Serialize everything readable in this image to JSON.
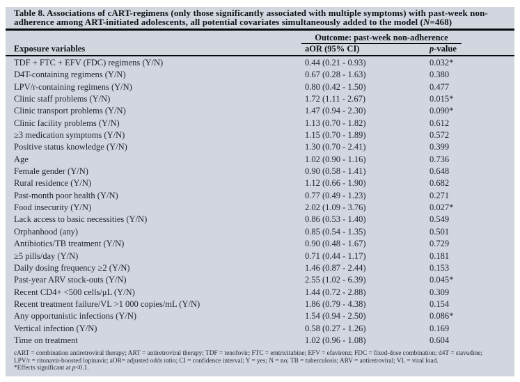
{
  "colors": {
    "table_background": "#d2d6de",
    "page_background": "#ffffff",
    "rule": "#05070c",
    "text": "#20242e"
  },
  "title": {
    "line1": "Table 8. Associations of cART-regimens (only those significantly associated with multiple symptoms) with past-week non-",
    "line2_pre": "adherence among ART-initiated adolescents, all potential covariates simultaneously added to the model (",
    "line2_n": "N",
    "line2_post": "=468)"
  },
  "header": {
    "outcome": "Outcome: past-week non-adherence",
    "exposure": "Exposure variables",
    "aor": "aOR (95% CI)",
    "p_italic": "p",
    "p_rest": "-value"
  },
  "table": {
    "rows": [
      {
        "label": "TDF + FTC + EFV (FDC) regimens (Y/N)",
        "aor": "0.44 (0.21 - 0.93)",
        "p": "0.032*"
      },
      {
        "label": "D4T-containing regimens (Y/N)",
        "aor": "0.67 (0.28 - 1.63)",
        "p": "0.380"
      },
      {
        "label": "LPV/r-containing regimens (Y/N)",
        "aor": "0.80 (0.42 - 1.50)",
        "p": "0.477"
      },
      {
        "label": "Clinic staff problems (Y/N)",
        "aor": "1.72 (1.11 - 2.67)",
        "p": "0.015*"
      },
      {
        "label": "Clinic transport problems (Y/N)",
        "aor": "1.47 (0.94 - 2.30)",
        "p": "0.090*"
      },
      {
        "label": "Clinic facility problems (Y/N)",
        "aor": "1.13 (0.70 - 1.82)",
        "p": "0.612"
      },
      {
        "label": "≥3 medication symptoms (Y/N)",
        "aor": "1.15 (0.70 - 1.89)",
        "p": "0.572"
      },
      {
        "label": "Positive status knowledge (Y/N)",
        "aor": "1.30 (0.70 - 2.41)",
        "p": "0.399"
      },
      {
        "label": "Age",
        "aor": "1.02 (0.90 - 1.16)",
        "p": "0.736"
      },
      {
        "label": "Female gender (Y/N)",
        "aor": "0.90 (0.58 - 1.41)",
        "p": "0.648"
      },
      {
        "label": "Rural residence (Y/N)",
        "aor": "1.12 (0.66 - 1.90)",
        "p": "0.682"
      },
      {
        "label": "Past-month poor health (Y/N)",
        "aor": "0.77 (0.49 - 1.23)",
        "p": "0.271"
      },
      {
        "label": "Food insecurity (Y/N)",
        "aor": "2.02 (1.09 - 3.76)",
        "p": "0.027*"
      },
      {
        "label": "Lack access to basic necessities (Y/N)",
        "aor": "0.86 (0.53 - 1.40)",
        "p": "0.549"
      },
      {
        "label": "Orphanhood (any)",
        "aor": "0.85 (0.54 - 1.35)",
        "p": "0.501"
      },
      {
        "label": "Antibiotics/TB treatment (Y/N)",
        "aor": "0.90 (0.48 - 1.67)",
        "p": "0.729"
      },
      {
        "label": "≥5 pills/day (Y/N)",
        "aor": "0.71 (0.44 - 1.17)",
        "p": "0.181"
      },
      {
        "label": "Daily dosing frequency ≥2 (Y/N)",
        "aor": "1.46 (0.87 - 2.44)",
        "p": "0.153"
      },
      {
        "label": "Past-year ARV stock-outs (Y/N)",
        "aor": "2.55 (1.02 - 6.39)",
        "p": "0.045*"
      },
      {
        "label": "Recent CD4+ <500 cells/μL (Y/N)",
        "aor": "1.44 (0.72 - 2.88)",
        "p": "0.309"
      },
      {
        "label": "Recent treatment failure/VL >1 000 copies/mL (Y/N)",
        "aor": "1.86 (0.79 - 4.38)",
        "p": "0.154"
      },
      {
        "label": "Any opportunistic infections (Y/N)",
        "aor": "1.54 (0.94 - 2.50)",
        "p": "0.086*"
      },
      {
        "label": "Vertical infection (Y/N)",
        "aor": "0.58 (0.27 - 1.26)",
        "p": "0.169"
      },
      {
        "label": "Time on treatment",
        "aor": "1.02 (0.96 - 1.08)",
        "p": "0.604"
      }
    ]
  },
  "footnotes": {
    "line1": "cART = combination antiretroviral therapy; ART = antiretroviral therapy; TDF = tenofovir; FTC = emtricitabine; EFV = efavirenz; FDC = fixed-dose combination; d4T = stavudine;",
    "line2": "LPV/r = ritonavir-boosted lopinavir; aOR= adjusted odds ratio; CI = confidence interval; Y = yes; N = no; TB = tuberculosis; ARV = antiretroviral; VL = viral load.",
    "line3_pre": "*Effects significant at ",
    "line3_p": "p",
    "line3_post": "<0.1."
  }
}
